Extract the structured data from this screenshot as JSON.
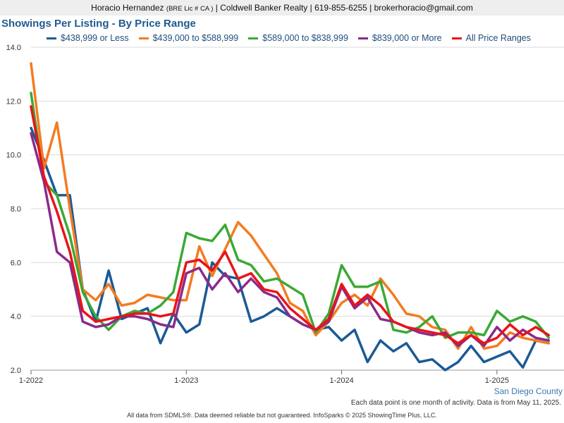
{
  "header": {
    "name": "Horacio Hernandez",
    "license": "(BRE Lic # CA )",
    "company": "| Coldwell Banker Realty | 619-855-6255 | brokerhoracio@gmail.com"
  },
  "footer": {
    "region": "San Diego County",
    "note": "Each data point is one month of activity. Data is from May 11, 2025.",
    "source": "All data from SDMLS®. Data deemed reliable but not guaranteed. InfoSparks © 2025 ShowingTime Plus, LLC."
  },
  "chart_data": {
    "type": "line",
    "title": "Showings Per Listing - By Price Range",
    "ylim": [
      2.0,
      14.0
    ],
    "y_ticks": [
      "2.0",
      "4.0",
      "6.0",
      "8.0",
      "10.0",
      "12.0",
      "14.0"
    ],
    "y_tick_values": [
      2,
      4,
      6,
      8,
      10,
      12,
      14
    ],
    "x_ticks": [
      "1-2022",
      "1-2023",
      "1-2024",
      "1-2025"
    ],
    "x_tick_indices": [
      0,
      12,
      24,
      36
    ],
    "x_start": "2022-01",
    "x_end": "2025-04",
    "grid": true,
    "legend_position": "top",
    "series": [
      {
        "name": "$438,999 or Less",
        "color": "#1a5a96",
        "values": [
          11.0,
          9.8,
          8.5,
          8.5,
          5.0,
          3.8,
          5.7,
          3.9,
          4.1,
          4.3,
          3.0,
          4.1,
          3.4,
          3.7,
          6.0,
          5.5,
          5.4,
          3.8,
          4.0,
          4.3,
          4.0,
          3.7,
          3.5,
          3.6,
          3.1,
          3.5,
          2.3,
          3.1,
          2.7,
          3.0,
          2.3,
          2.4,
          2.0,
          2.3,
          2.9,
          2.3,
          2.5,
          2.7,
          2.1,
          3.1,
          3.0
        ]
      },
      {
        "name": "$439,000 to $588,999",
        "color": "#f47b20",
        "values": [
          13.4,
          9.5,
          11.2,
          8.0,
          5.0,
          4.6,
          5.2,
          4.4,
          4.5,
          4.8,
          4.7,
          4.6,
          4.6,
          6.6,
          5.5,
          6.5,
          7.5,
          7.0,
          6.3,
          5.6,
          4.5,
          4.2,
          3.3,
          3.8,
          4.5,
          4.8,
          4.4,
          5.4,
          4.8,
          4.1,
          4.0,
          3.6,
          3.5,
          2.8,
          3.6,
          2.8,
          2.9,
          3.4,
          3.2,
          3.1,
          3.0
        ]
      },
      {
        "name": "$589,000 to $838,999",
        "color": "#3aa935",
        "values": [
          12.3,
          9.0,
          8.5,
          7.0,
          4.9,
          4.0,
          3.5,
          4.0,
          4.2,
          4.1,
          4.4,
          4.9,
          7.1,
          6.9,
          6.8,
          7.4,
          6.1,
          5.9,
          5.3,
          5.4,
          5.1,
          4.8,
          3.4,
          4.1,
          5.9,
          5.1,
          5.1,
          5.3,
          3.5,
          3.4,
          3.6,
          4.0,
          3.2,
          3.4,
          3.4,
          3.3,
          4.2,
          3.8,
          4.0,
          3.8,
          3.2
        ]
      },
      {
        "name": "$839,000 or More",
        "color": "#8b2a8a",
        "values": [
          10.8,
          9.0,
          6.4,
          6.0,
          3.8,
          3.6,
          3.7,
          4.0,
          4.0,
          3.9,
          3.7,
          3.6,
          5.6,
          5.8,
          5.0,
          5.6,
          4.9,
          5.4,
          4.9,
          4.7,
          4.0,
          3.7,
          3.5,
          3.8,
          5.1,
          4.3,
          4.7,
          3.9,
          3.8,
          3.6,
          3.4,
          3.3,
          3.4,
          2.9,
          3.3,
          2.9,
          3.6,
          3.1,
          3.5,
          3.2,
          3.1
        ]
      },
      {
        "name": "All Price Ranges",
        "color": "#e8141a",
        "values": [
          11.8,
          9.2,
          7.9,
          6.4,
          4.2,
          3.8,
          3.9,
          4.0,
          4.1,
          4.1,
          4.0,
          4.1,
          6.0,
          6.1,
          5.7,
          6.4,
          5.4,
          5.6,
          5.0,
          4.9,
          4.3,
          3.9,
          3.5,
          3.9,
          5.2,
          4.4,
          4.8,
          4.4,
          3.8,
          3.6,
          3.5,
          3.4,
          3.3,
          3.0,
          3.3,
          3.0,
          3.2,
          3.7,
          3.3,
          3.6,
          3.3
        ]
      }
    ]
  }
}
